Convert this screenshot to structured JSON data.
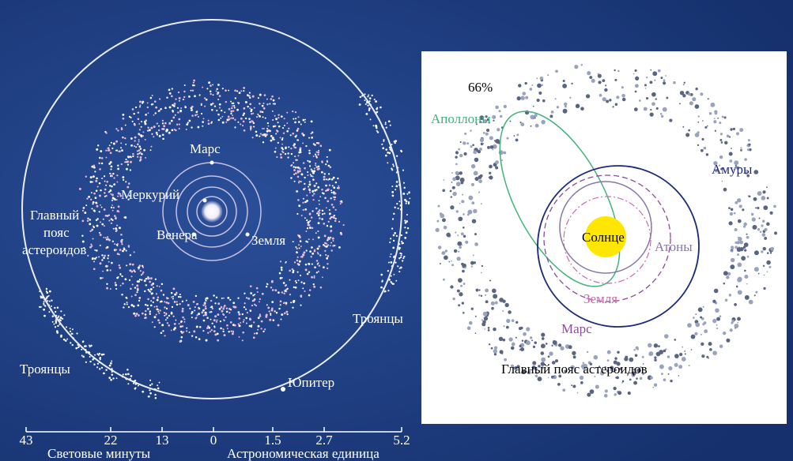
{
  "left_panel": {
    "mars": "Марс",
    "mercury": "Меркурий",
    "venus": "Венера",
    "earth": "Земля",
    "belt": [
      "Главный",
      "пояс",
      "астероидов"
    ],
    "trojans_right": "Троянцы",
    "trojans_left": "Троянцы",
    "jupiter": "Юпитер"
  },
  "scale": {
    "ticks": [
      "43",
      "22",
      "13",
      "0",
      "1.5",
      "2.7",
      "5.2"
    ],
    "left_caption": "Световые минуты",
    "right_caption": "Астрономическая единица"
  },
  "right_panel": {
    "percent": "66%",
    "apollo": "Аполлоны",
    "amor": "Амуры",
    "sun": "Солнце",
    "aten": "Атоны",
    "earth": "Земля",
    "mars": "Марс",
    "belt": "Главный пояс астероидов"
  }
}
